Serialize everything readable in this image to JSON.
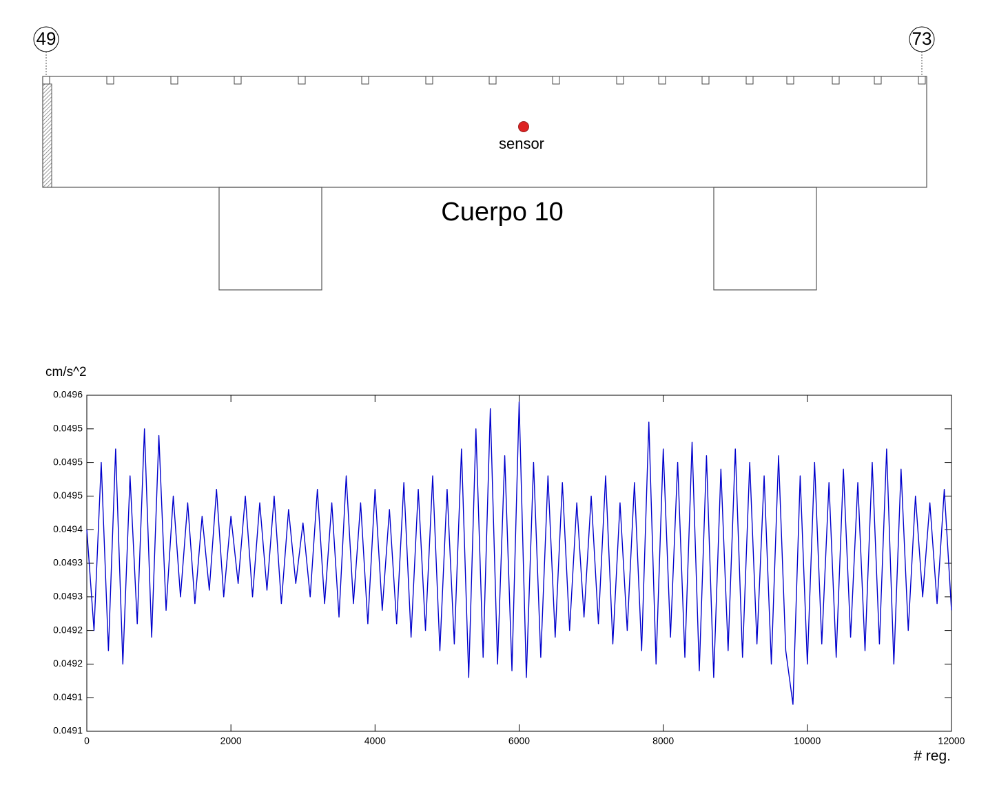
{
  "diagram": {
    "left_node": "49",
    "right_node": "73",
    "sensor_label": "sensor",
    "title": "Cuerpo 10"
  },
  "chart_data": {
    "type": "line",
    "y_label": "cm/s^2",
    "x_label": "# reg.",
    "color": "#0000cc",
    "xlim": [
      0,
      12000
    ],
    "xticks": [
      0,
      2000,
      4000,
      6000,
      8000,
      10000,
      12000
    ],
    "ylim": [
      0.0491,
      0.0496
    ],
    "yticks": [
      0.0491,
      {
        "value": 0.04915,
        "label": "0.0491"
      },
      0.0492,
      {
        "value": 0.04925,
        "label": "0.0492"
      },
      0.0493,
      {
        "value": 0.04935,
        "label": "0.0493"
      },
      0.0494,
      {
        "value": 0.04945,
        "label": "0.0495"
      },
      0.0495,
      {
        "value": 0.04955,
        "label": "0.0495"
      },
      0.0496
    ],
    "x": [
      0,
      100,
      200,
      300,
      400,
      500,
      600,
      700,
      800,
      900,
      1000,
      1100,
      1200,
      1300,
      1400,
      1500,
      1600,
      1700,
      1800,
      1900,
      2000,
      2100,
      2200,
      2300,
      2400,
      2500,
      2600,
      2700,
      2800,
      2900,
      3000,
      3100,
      3200,
      3300,
      3400,
      3500,
      3600,
      3700,
      3800,
      3900,
      4000,
      4100,
      4200,
      4300,
      4400,
      4500,
      4600,
      4700,
      4800,
      4900,
      5000,
      5100,
      5200,
      5300,
      5400,
      5500,
      5600,
      5700,
      5800,
      5900,
      6000,
      6100,
      6200,
      6300,
      6400,
      6500,
      6600,
      6700,
      6800,
      6900,
      7000,
      7100,
      7200,
      7300,
      7400,
      7500,
      7600,
      7700,
      7800,
      7900,
      8000,
      8100,
      8200,
      8300,
      8400,
      8500,
      8600,
      8700,
      8800,
      8900,
      9000,
      9100,
      9200,
      9300,
      9400,
      9500,
      9600,
      9700,
      9800,
      9900,
      10000,
      10100,
      10200,
      10300,
      10400,
      10500,
      10600,
      10700,
      10800,
      10900,
      11000,
      11100,
      11200,
      11300,
      11400,
      11500,
      11600,
      11700,
      11800,
      11900,
      12000
    ],
    "values": [
      0.0494,
      0.04925,
      0.0495,
      0.04922,
      0.04952,
      0.0492,
      0.04948,
      0.04926,
      0.04955,
      0.04924,
      0.04954,
      0.04928,
      0.04945,
      0.0493,
      0.04944,
      0.04929,
      0.04942,
      0.04931,
      0.04946,
      0.0493,
      0.04942,
      0.04932,
      0.04945,
      0.0493,
      0.04944,
      0.04931,
      0.04945,
      0.04929,
      0.04943,
      0.04932,
      0.04941,
      0.0493,
      0.04946,
      0.04929,
      0.04944,
      0.04927,
      0.04948,
      0.04929,
      0.04944,
      0.04926,
      0.04946,
      0.04928,
      0.04943,
      0.04926,
      0.04947,
      0.04924,
      0.04946,
      0.04925,
      0.04948,
      0.04922,
      0.04946,
      0.04923,
      0.04952,
      0.04918,
      0.04955,
      0.04921,
      0.04958,
      0.0492,
      0.04951,
      0.04919,
      0.04959,
      0.04918,
      0.0495,
      0.04921,
      0.04948,
      0.04924,
      0.04947,
      0.04925,
      0.04944,
      0.04927,
      0.04945,
      0.04926,
      0.04948,
      0.04923,
      0.04944,
      0.04925,
      0.04947,
      0.04922,
      0.04956,
      0.0492,
      0.04952,
      0.04924,
      0.0495,
      0.04921,
      0.04953,
      0.04919,
      0.04951,
      0.04918,
      0.04949,
      0.04922,
      0.04952,
      0.04921,
      0.0495,
      0.04923,
      0.04948,
      0.0492,
      0.04951,
      0.04922,
      0.04914,
      0.04948,
      0.0492,
      0.0495,
      0.04923,
      0.04947,
      0.04921,
      0.04949,
      0.04924,
      0.04947,
      0.04922,
      0.0495,
      0.04923,
      0.04952,
      0.0492,
      0.04949,
      0.04925,
      0.04945,
      0.0493,
      0.04944,
      0.04929,
      0.04946,
      0.04928
    ]
  }
}
